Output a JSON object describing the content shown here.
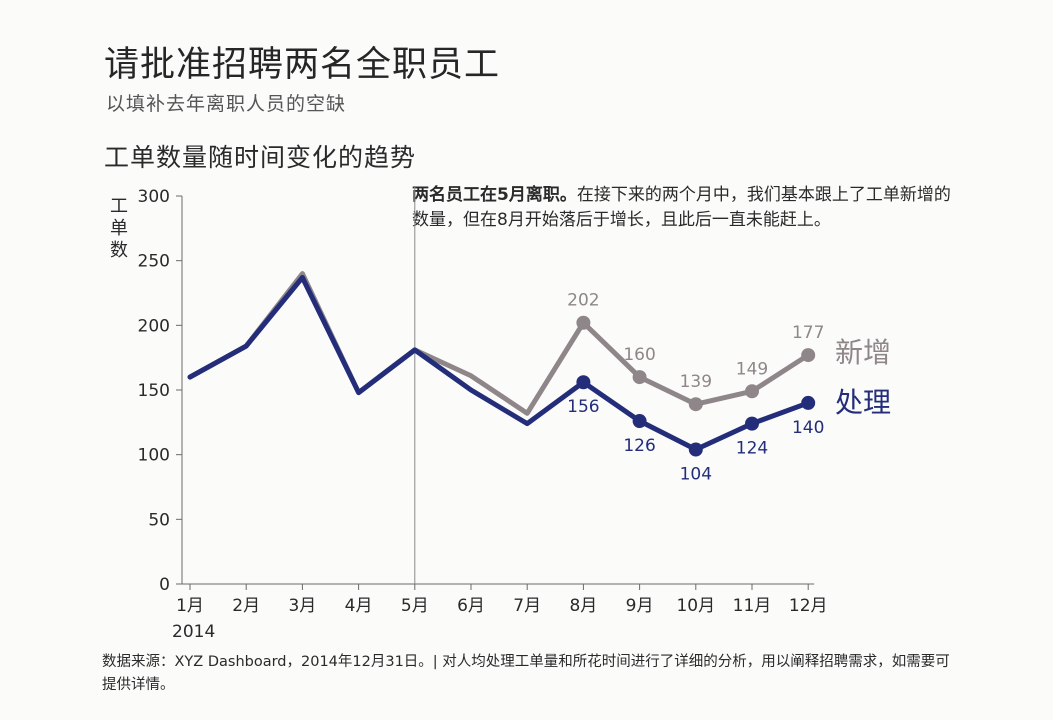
{
  "title": "请批准招聘两名全职员工",
  "subtitle": "以填补去年离职人员的空缺",
  "annotation": {
    "bold": "两名员工在5月离职。",
    "text": "在接下来的两个月中，我们基本跟上了工单新增的数量，但在8月开始落后于增长，且此后一直未能赶上。"
  },
  "footer": "数据来源：XYZ Dashboard，2014年12月31日。| 对人均处理工单量和所花时间进行了详细的分析，用以阐释招聘需求，如需要可提供详情。",
  "colors": {
    "added": "#8f8689",
    "processed": "#232d7a",
    "axis": "#6b6b6b",
    "text": "#2a2a2a"
  },
  "chart_data": {
    "type": "line",
    "title": "工单数量随时间变化的趋势",
    "xlabel": "",
    "ylabel": "工单数",
    "year_label": "2014",
    "categories": [
      "1月",
      "2月",
      "3月",
      "4月",
      "5月",
      "6月",
      "7月",
      "8月",
      "9月",
      "10月",
      "11月",
      "12月"
    ],
    "ylim": [
      0,
      300
    ],
    "yticks": [
      0,
      50,
      100,
      150,
      200,
      250,
      300
    ],
    "grid": false,
    "reference_line": {
      "category": "5月"
    },
    "series": [
      {
        "name": "新增",
        "values": [
          160,
          184,
          240,
          148,
          181,
          161,
          132,
          202,
          160,
          139,
          149,
          177
        ],
        "labeled_from": 7,
        "label_position": "above"
      },
      {
        "name": "处理",
        "values": [
          160,
          184,
          237,
          148,
          181,
          150,
          124,
          156,
          126,
          104,
          124,
          140
        ],
        "labeled_from": 7,
        "label_position": "below"
      }
    ]
  }
}
